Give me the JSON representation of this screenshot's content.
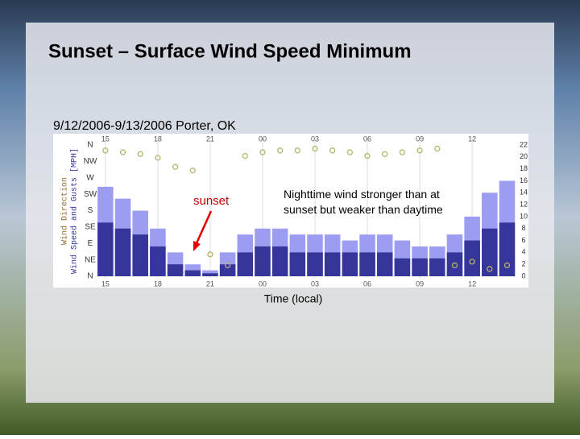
{
  "title": "Sunset – Surface Wind Speed Minimum",
  "chart_data": {
    "type": "bar",
    "subtitle": "9/12/2006-9/13/2006  Porter, OK",
    "xlabel": "Time (local)",
    "ylabel": "Wind Speed and Gusts [MPH]",
    "y2label": "Wind Direction",
    "annotations": [
      "sunset",
      "Nighttime wind stronger than at sunset but weaker than daytime"
    ],
    "x": [
      1,
      2,
      3,
      4,
      5,
      6,
      7,
      8,
      9,
      10,
      11,
      12,
      13,
      14,
      15,
      16,
      17,
      18,
      19,
      20,
      21,
      22,
      23,
      24
    ],
    "xlim": [
      0.5,
      24.3
    ],
    "xticks": [
      {
        "value": 1,
        "label": "15"
      },
      {
        "value": 4,
        "label": "18"
      },
      {
        "value": 7,
        "label": "21"
      },
      {
        "value": 10,
        "label": "00"
      },
      {
        "value": 13,
        "label": "03"
      },
      {
        "value": 16,
        "label": "06"
      },
      {
        "value": 19,
        "label": "09"
      },
      {
        "value": 22,
        "label": "12"
      }
    ],
    "ylim": [
      0,
      22
    ],
    "yticks": [
      0,
      2,
      4,
      6,
      8,
      10,
      12,
      14,
      16,
      18,
      20,
      22
    ],
    "y2lim": [
      0,
      360
    ],
    "y2ticks": [
      {
        "value": 0,
        "label": "N"
      },
      {
        "value": 45,
        "label": "NE"
      },
      {
        "value": 90,
        "label": "E"
      },
      {
        "value": 135,
        "label": "SE"
      },
      {
        "value": 180,
        "label": "S"
      },
      {
        "value": 225,
        "label": "SW"
      },
      {
        "value": 270,
        "label": "W"
      },
      {
        "value": 315,
        "label": "NW"
      },
      {
        "value": 360,
        "label": "N"
      }
    ],
    "series": [
      {
        "name": "Gusts",
        "color": "#9c9cf0",
        "values": [
          15,
          13,
          11,
          8,
          4,
          2,
          1,
          4,
          7,
          8,
          8,
          7,
          7,
          7,
          6,
          7,
          7,
          6,
          5,
          5,
          7,
          10,
          14,
          16
        ]
      },
      {
        "name": "Wind Speed",
        "color": "#35359a",
        "values": [
          9,
          8,
          7,
          5,
          2,
          1,
          0.5,
          2,
          4,
          5,
          5,
          4,
          4,
          4,
          4,
          4,
          4,
          3,
          3,
          3,
          4,
          6,
          8,
          9
        ]
      },
      {
        "name": "Wind Direction",
        "color": "#b5b56a",
        "axis": "y2",
        "values": [
          345,
          340,
          335,
          325,
          300,
          290,
          60,
          30,
          330,
          340,
          345,
          345,
          350,
          345,
          340,
          330,
          335,
          340,
          345,
          350,
          30,
          40,
          20,
          30
        ]
      }
    ]
  }
}
